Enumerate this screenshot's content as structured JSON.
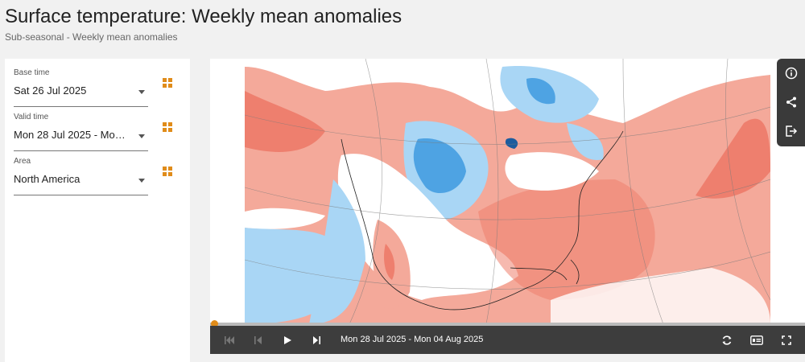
{
  "header": {
    "title": "Surface temperature: Weekly mean anomalies",
    "subtitle": "Sub-seasonal - Weekly mean anomalies"
  },
  "controls": [
    {
      "label": "Base time",
      "value": "Sat 26 Jul 2025"
    },
    {
      "label": "Valid time",
      "value": "Mon 28 Jul 2025 - Mon 04 Aug 2025"
    },
    {
      "label": "Area",
      "value": "North America"
    }
  ],
  "player": {
    "date_range": "Mon 28 Jul 2025 - Mon 04 Aug 2025",
    "progress": 0
  },
  "icons": {
    "toolbar": [
      "info-icon",
      "share-icon",
      "export-icon"
    ],
    "player": [
      "first-frame-icon",
      "previous-frame-icon",
      "play-icon",
      "next-frame-icon",
      "loop-icon",
      "legend-icon",
      "fullscreen-icon"
    ],
    "controls": [
      "grid-icon"
    ]
  },
  "colors": {
    "accent": "#e08c1a",
    "warm_anomaly": "#f4a99a",
    "strong_warm_anomaly": "#ee7f6e",
    "cool_anomaly": "#a9d6f5",
    "strong_cool_anomaly": "#4ea3e3",
    "player_bg": "#3d3d3d"
  }
}
